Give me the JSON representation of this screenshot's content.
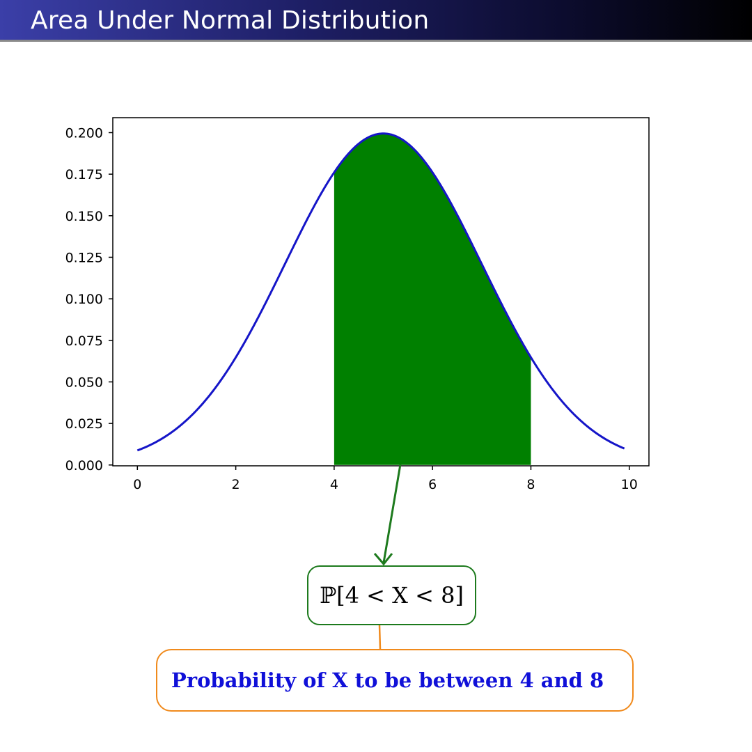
{
  "header": {
    "title": "Area Under Normal Distribution"
  },
  "chart_data": {
    "type": "area",
    "distribution": "normal",
    "mean": 5,
    "std": 2,
    "x_range": [
      0,
      9.9
    ],
    "xlim": [
      -0.5,
      10.4
    ],
    "ylim": [
      -0.0005,
      0.209
    ],
    "xticks": [
      0,
      2,
      4,
      6,
      8,
      10
    ],
    "xtick_labels": [
      "0",
      "2",
      "4",
      "6",
      "8",
      "10"
    ],
    "yticks": [
      0.0,
      0.025,
      0.05,
      0.075,
      0.1,
      0.125,
      0.15,
      0.175,
      0.2
    ],
    "ytick_labels": [
      "0.000",
      "0.025",
      "0.050",
      "0.075",
      "0.100",
      "0.125",
      "0.150",
      "0.175",
      "0.200"
    ],
    "shaded_region": [
      4,
      8
    ],
    "title": "",
    "xlabel": "",
    "ylabel": "",
    "grid": false,
    "colors": {
      "curve": "#1515c8",
      "fill": "#008000"
    }
  },
  "annotations": {
    "formula": "ℙ[4 < X < 8]",
    "note": "Probability of X to be between 4 and 8",
    "colors": {
      "formula_border": "#1d7a1d",
      "arrow": "#1d7a1d",
      "note_border": "#f08a1c",
      "note_text": "#1010d8"
    }
  }
}
